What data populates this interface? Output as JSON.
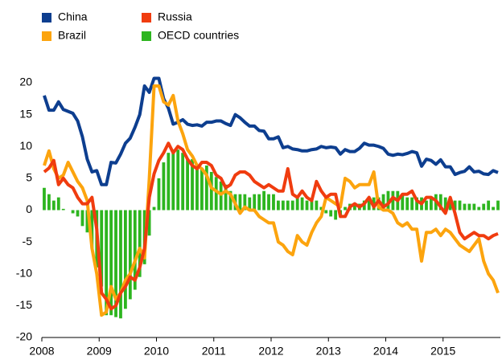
{
  "chart_data": {
    "type": "combo",
    "categories": [
      "2008",
      null,
      null,
      null,
      null,
      null,
      null,
      null,
      null,
      null,
      null,
      null,
      "2009",
      null,
      null,
      null,
      null,
      null,
      null,
      null,
      null,
      null,
      null,
      null,
      "2010",
      null,
      null,
      null,
      null,
      null,
      null,
      null,
      null,
      null,
      null,
      null,
      "2011",
      null,
      null,
      null,
      null,
      null,
      null,
      null,
      null,
      null,
      null,
      null,
      "2012",
      null,
      null,
      null,
      null,
      null,
      null,
      null,
      null,
      null,
      null,
      null,
      "2013",
      null,
      null,
      null,
      null,
      null,
      null,
      null,
      null,
      null,
      null,
      null,
      "2014",
      null,
      null,
      null,
      null,
      null,
      null,
      null,
      null,
      null,
      null,
      null,
      "2015",
      null,
      null,
      null,
      null,
      null,
      null,
      null,
      null,
      null,
      null,
      null
    ],
    "ylim": [
      -20,
      20
    ],
    "yticks": [
      -20,
      -15,
      -10,
      -5,
      0,
      5,
      10,
      15,
      20
    ],
    "grid": false,
    "legend": "top-left",
    "series": [
      {
        "name": "OECD countries",
        "type": "bar",
        "color": "#2db51f",
        "values": [
          3.5,
          2.5,
          1.5,
          2,
          0.2,
          0,
          -0.5,
          -1,
          -2.5,
          -3.5,
          -6,
          -9,
          -12,
          -16.5,
          -16.5,
          -16.8,
          -17,
          -15.5,
          -14,
          -12.5,
          -10.5,
          -8.5,
          -4,
          0.5,
          5,
          7.5,
          9,
          9.5,
          9.5,
          9,
          8,
          8,
          6.5,
          6.5,
          7,
          6,
          5.2,
          4.5,
          4,
          3,
          2.5,
          2.5,
          2.5,
          2,
          2.5,
          2.5,
          3,
          2.5,
          2.5,
          1.5,
          1.5,
          1.5,
          1.5,
          2,
          2,
          1.5,
          1.5,
          1.5,
          0.5,
          -0.5,
          -1,
          -1.5,
          -1,
          0.5,
          1,
          1,
          1,
          1.5,
          1.5,
          2,
          2,
          2.5,
          3,
          3,
          3,
          2.5,
          2,
          2,
          2,
          2,
          1.5,
          2,
          2.5,
          2.5,
          2,
          2,
          1.5,
          1.5,
          1,
          1,
          1,
          0.5,
          1,
          1.5,
          0.5,
          1.5
        ]
      },
      {
        "name": "China",
        "type": "line",
        "color": "#0d3e8f",
        "values": [
          18,
          15.7,
          15.7,
          17,
          15.8,
          15.5,
          15.2,
          14,
          11.5,
          8,
          6,
          6.2,
          4,
          4,
          7.5,
          7.4,
          8.8,
          10.5,
          11.3,
          13,
          15,
          19.5,
          18.5,
          20.7,
          20.7,
          17.5,
          16,
          13.5,
          13.8,
          14.2,
          13.5,
          13.3,
          13.4,
          13.2,
          13.8,
          13.8,
          14,
          14,
          13.6,
          13.3,
          15,
          14.5,
          13.8,
          13.2,
          13.2,
          12.5,
          12.4,
          11.2,
          11.2,
          11.5,
          9.8,
          10,
          9.6,
          9.5,
          9.3,
          9.3,
          9.5,
          9.6,
          10,
          9.8,
          9.9,
          9.8,
          8.8,
          9.5,
          9.2,
          9.2,
          9.7,
          10.5,
          10.2,
          10.2,
          10,
          9.7,
          8.8,
          8.6,
          8.8,
          8.7,
          8.9,
          9.2,
          9,
          6.9,
          8,
          7.8,
          7.2,
          7.9,
          6.8,
          6.8,
          5.6,
          5.9,
          6.1,
          6.8,
          6,
          6.1,
          5.7,
          5.6,
          6.2,
          5.9
        ]
      },
      {
        "name": "Brazil",
        "type": "line",
        "color": "#fca40e",
        "values": [
          7,
          9.3,
          6.5,
          5,
          5.5,
          7.5,
          6,
          4.5,
          3.5,
          1.5,
          -6,
          -10,
          -16.5,
          -16,
          -12,
          -14,
          -13,
          -11,
          -10,
          -8,
          -6,
          -7.5,
          5,
          19.5,
          19.5,
          17,
          16.5,
          18,
          14,
          12,
          9.5,
          8.5,
          7,
          6.5,
          5.5,
          3.5,
          3,
          2.5,
          3,
          2.5,
          1,
          -0.5,
          0.5,
          0,
          0,
          -1,
          -1.5,
          -2,
          -2,
          -5,
          -5.5,
          -6.5,
          -7,
          -4,
          -5,
          -5.5,
          -3.5,
          -2,
          -1,
          2,
          1.5,
          1,
          0.5,
          5,
          4.5,
          3.5,
          4,
          4,
          4,
          6,
          0.5,
          0,
          0,
          -0.5,
          -2,
          -2.5,
          -2,
          -3,
          -3,
          -8,
          -3.5,
          -3.5,
          -3,
          -4,
          -3,
          -3.5,
          -4.5,
          -5.5,
          -6,
          -6.5,
          -5.5,
          -4.5,
          -8,
          -10,
          -11,
          -13
        ]
      },
      {
        "name": "Russia",
        "type": "line",
        "color": "#f03c0f",
        "values": [
          6,
          6.6,
          7.8,
          4,
          5,
          4,
          3.5,
          2,
          1,
          1,
          2,
          -3,
          -13,
          -14,
          -15.5,
          -15,
          -13,
          -12,
          -10.5,
          -11,
          -9,
          -6,
          2,
          5.7,
          7.8,
          9,
          10.5,
          9,
          10,
          9.5,
          8,
          7,
          6.5,
          7.5,
          7.5,
          7,
          5.5,
          5,
          3.5,
          4,
          5.5,
          6,
          6,
          5.5,
          4.5,
          4,
          3.5,
          4,
          3.5,
          3,
          3,
          6.5,
          2.5,
          2,
          3,
          2,
          1.5,
          4.5,
          3,
          2,
          2.5,
          2.5,
          -1,
          -1,
          0.5,
          1,
          0.5,
          1,
          2,
          0.5,
          1.5,
          0.5,
          1,
          2,
          1.5,
          2.5,
          2.5,
          3,
          1.5,
          1,
          2,
          2,
          1.5,
          0.5,
          -0.5,
          2,
          -0.5,
          -3.5,
          -4.5,
          -4,
          -3.5,
          -4,
          -4,
          -4.5,
          -4,
          -3.7
        ]
      }
    ]
  }
}
